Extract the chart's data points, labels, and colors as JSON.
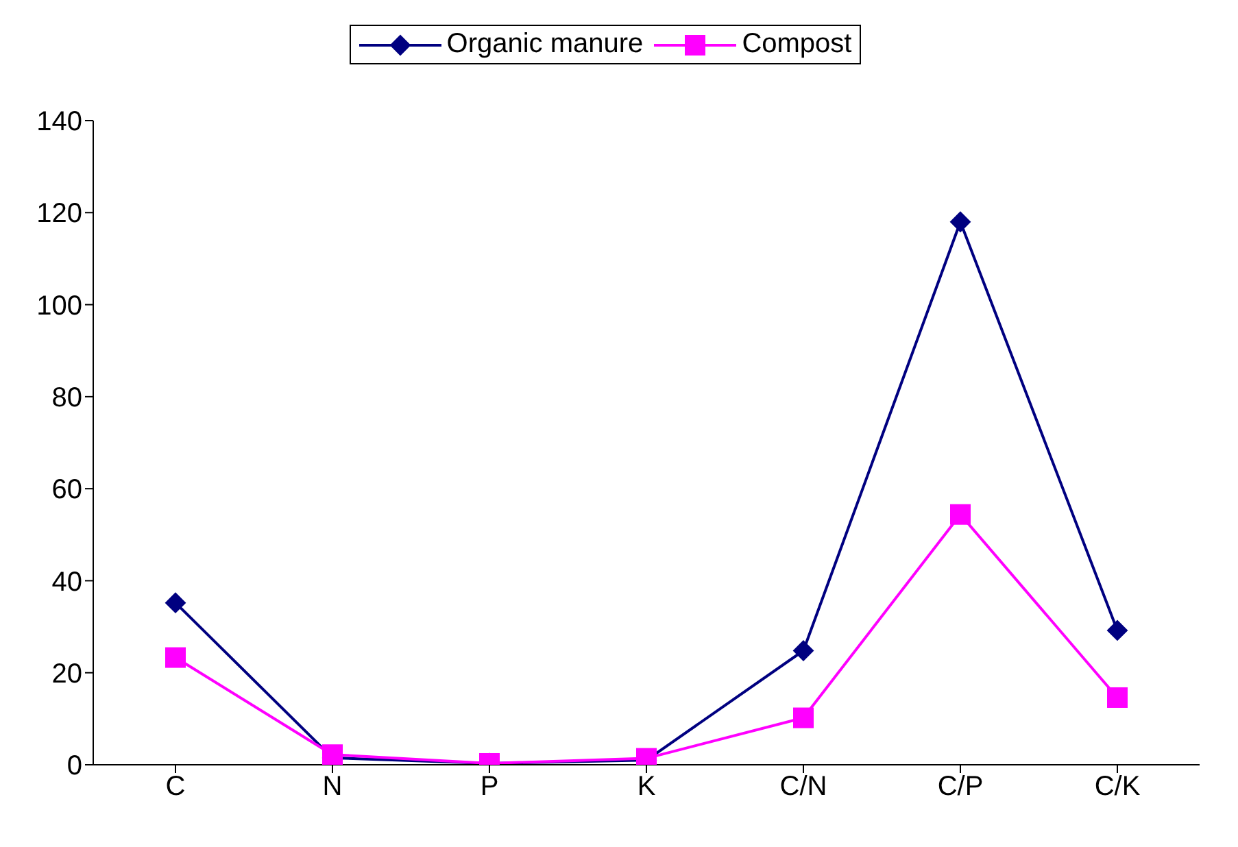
{
  "chart_data": {
    "type": "line",
    "categories": [
      "C",
      "N",
      "P",
      "K",
      "C/N",
      "C/P",
      "C/K"
    ],
    "series": [
      {
        "name": "Organic manure",
        "color": "#000080",
        "marker": "diamond",
        "values": [
          35.2,
          1.5,
          0.3,
          1.0,
          24.8,
          118,
          29.2
        ]
      },
      {
        "name": "Compost",
        "color": "#ff00ff",
        "marker": "square",
        "values": [
          23.3,
          2.2,
          0.3,
          1.4,
          10.2,
          54.4,
          14.6
        ]
      }
    ],
    "ylim": [
      0,
      140
    ],
    "yticks": [
      0,
      20,
      40,
      60,
      80,
      100,
      120,
      140
    ],
    "grid": false,
    "legend": "top"
  }
}
